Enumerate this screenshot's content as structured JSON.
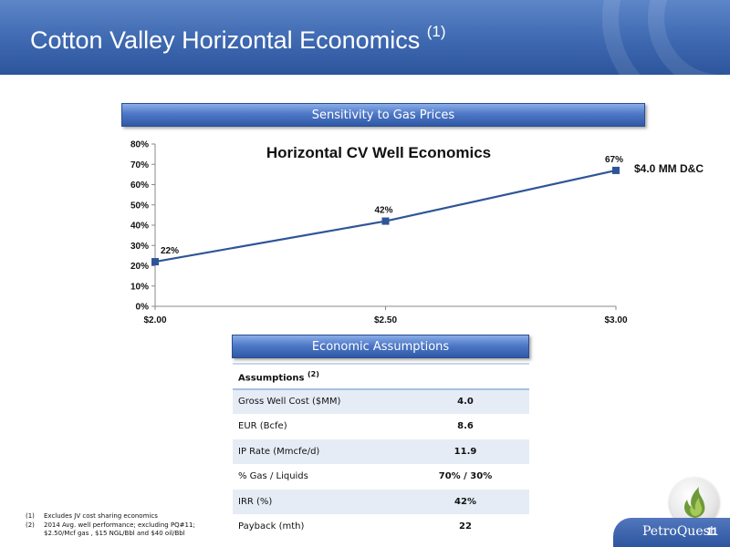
{
  "header": {
    "title": "Cotton Valley Horizontal Economics",
    "title_sup": "(1)"
  },
  "sections": {
    "sensitivity": "Sensitivity to Gas Prices",
    "assumptions": "Economic Assumptions"
  },
  "chart_data": {
    "type": "line",
    "title": "Horizontal CV Well Economics",
    "categories": [
      "$2.00",
      "$2.50",
      "$3.00"
    ],
    "series": [
      {
        "name": "$4.0 MM D&C",
        "values": [
          22,
          42,
          67
        ],
        "color": "#2e5597"
      }
    ],
    "data_labels": [
      "22%",
      "42%",
      "67%"
    ],
    "y_ticks": [
      "0%",
      "10%",
      "20%",
      "30%",
      "40%",
      "50%",
      "60%",
      "70%",
      "80%"
    ],
    "ylim": [
      0,
      80
    ],
    "xlabel": "",
    "ylabel": "",
    "grid": false,
    "annotation": "$4.0 MM D&C"
  },
  "table": {
    "header": "Assumptions",
    "header_sup": "(2)",
    "rows": [
      {
        "label": "Gross Well Cost ($MM)",
        "value": "4.0"
      },
      {
        "label": "EUR (Bcfe)",
        "value": "8.6"
      },
      {
        "label": "IP Rate (Mmcfe/d)",
        "value": "11.9"
      },
      {
        "label": "% Gas / Liquids",
        "value": "70% / 30%"
      },
      {
        "label": "IRR (%)",
        "value": "42%"
      },
      {
        "label": "Payback (mth)",
        "value": "22"
      }
    ]
  },
  "footnotes": [
    {
      "num": "(1)",
      "lines": [
        "Excludes JV cost sharing economics"
      ]
    },
    {
      "num": "(2)",
      "lines": [
        "2014 Avg. well performance; excluding PQ#11;",
        "$2.50/Mcf gas , $15 NGL/Bbl and $40 oil/Bbl"
      ]
    }
  ],
  "footer": {
    "brand": "PetroQuest",
    "page_number": "11"
  },
  "colors": {
    "header_blue": "#3e68b0",
    "series_blue": "#2e5597",
    "table_shade": "#e6ecf6"
  }
}
